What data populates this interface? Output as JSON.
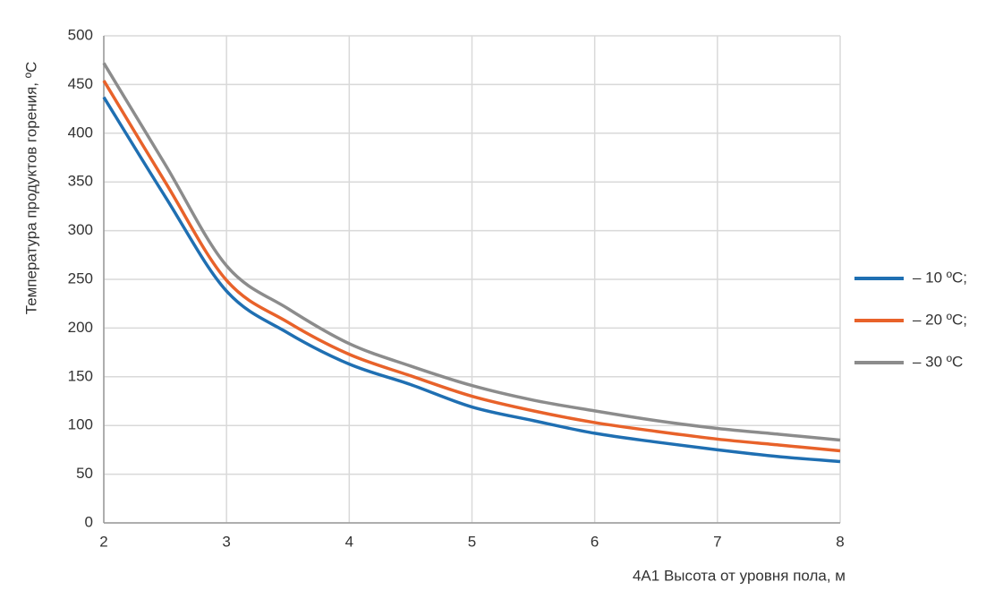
{
  "chart_data": {
    "type": "line",
    "y_label": "Температура продуктов горения, ºС",
    "x_label": "4А1 Высота от уровня пола, м",
    "x": [
      2,
      2.5,
      3,
      3.5,
      4,
      4.5,
      5,
      5.5,
      6,
      6.5,
      7,
      7.5,
      8
    ],
    "series": [
      {
        "name": "– 10 ºC;",
        "color": "#1f6fb2",
        "values": [
          437,
          335,
          238,
          195,
          163,
          142,
          119,
          105,
          92,
          83,
          75,
          68,
          63
        ]
      },
      {
        "name": "– 20 ºC;",
        "color": "#e8622a",
        "values": [
          454,
          350,
          249,
          206,
          173,
          151,
          130,
          115,
          103,
          94,
          86,
          80,
          74
        ]
      },
      {
        "name": "– 30 ºC",
        "color": "#8c8c8c",
        "values": [
          472,
          368,
          264,
          220,
          184,
          161,
          141,
          126,
          115,
          105,
          97,
          91,
          85
        ]
      }
    ],
    "xlim": [
      2,
      8
    ],
    "xticks": [
      2,
      3,
      4,
      5,
      6,
      7,
      8
    ],
    "ylim": [
      0,
      500
    ],
    "yticks": [
      0,
      50,
      100,
      150,
      200,
      250,
      300,
      350,
      400,
      450,
      500
    ],
    "grid": true,
    "legend": "right"
  }
}
